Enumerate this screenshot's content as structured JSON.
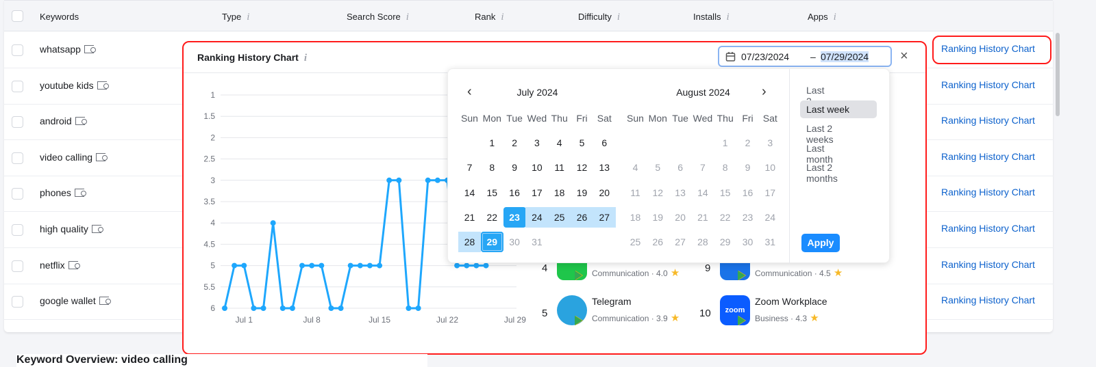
{
  "table": {
    "columns": [
      "Keywords",
      "Type",
      "Search Score",
      "Rank",
      "Difficulty",
      "Installs",
      "Apps"
    ],
    "rows": [
      "whatsapp",
      "youtube kids",
      "android",
      "video calling",
      "phones",
      "high quality",
      "netflix",
      "google wallet"
    ],
    "action_label": "Ranking History Chart"
  },
  "popup": {
    "title": "Ranking History Chart",
    "date_start": "07/23/2024",
    "date_sep": "–",
    "date_end": "07/29/2024",
    "close": "×"
  },
  "calendar": {
    "prev": "‹",
    "next": "›",
    "weekdays": [
      "Sun",
      "Mon",
      "Tue",
      "Wed",
      "Thu",
      "Fri",
      "Sat"
    ],
    "months": [
      {
        "label": "July 2024",
        "first_weekday": 1,
        "days": 31,
        "active": true
      },
      {
        "label": "August 2024",
        "first_weekday": 4,
        "days": 31,
        "active": false
      }
    ],
    "range_start": 23,
    "range_end": 29,
    "presets": [
      "Last 2 days",
      "Last week",
      "Last 2 weeks",
      "Last month",
      "Last 2 months"
    ],
    "selected_preset": "Last week",
    "apply": "Apply"
  },
  "chart_data": {
    "type": "line",
    "title": "",
    "xlabel": "",
    "ylabel": "",
    "x": [
      "Jun 29",
      "Jun 30",
      "Jul 1",
      "Jul 2",
      "Jul 3",
      "Jul 4",
      "Jul 5",
      "Jul 6",
      "Jul 7",
      "Jul 8",
      "Jul 9",
      "Jul 10",
      "Jul 11",
      "Jul 12",
      "Jul 13",
      "Jul 14",
      "Jul 15",
      "Jul 16",
      "Jul 17",
      "Jul 18",
      "Jul 19",
      "Jul 20",
      "Jul 21",
      "Jul 22",
      "Jul 23",
      "Jul 24",
      "Jul 25",
      "Jul 26"
    ],
    "values": [
      6,
      5,
      5,
      6,
      6,
      4,
      6,
      6,
      5,
      5,
      5,
      6,
      6,
      5,
      5,
      5,
      5,
      3,
      3,
      6,
      6,
      3,
      3,
      3,
      5,
      5,
      5,
      5
    ],
    "yticks": [
      "1",
      "1.5",
      "2",
      "2.5",
      "3",
      "3.5",
      "4",
      "4.5",
      "5",
      "5.5",
      "6"
    ],
    "ylim": [
      1,
      6
    ],
    "y_inverted": true,
    "xticks": [
      "Jul 1",
      "Jul 8",
      "Jul 15",
      "Jul 22",
      "Jul 29"
    ],
    "grid": true,
    "color": "#1ea7fd"
  },
  "apps": [
    {
      "rank": "4",
      "name": "",
      "category": "Communication",
      "rating": "4.0",
      "icon": "wechat-icon",
      "color": "#1fc64b"
    },
    {
      "rank": "9",
      "name": "",
      "category": "Communication",
      "rating": "4.5",
      "icon": "google-meet-icon",
      "color": "#1a73e8"
    },
    {
      "rank": "5",
      "name": "Telegram",
      "category": "Communication",
      "rating": "3.9",
      "icon": "telegram-icon",
      "color": "#2aa3df"
    },
    {
      "rank": "10",
      "name": "Zoom Workplace",
      "category": "Business",
      "rating": "4.3",
      "icon": "zoom-icon",
      "color": "#0b5cff",
      "icon_text": "zoom"
    }
  ],
  "footer": {
    "title": "Keyword Overview: video calling"
  }
}
